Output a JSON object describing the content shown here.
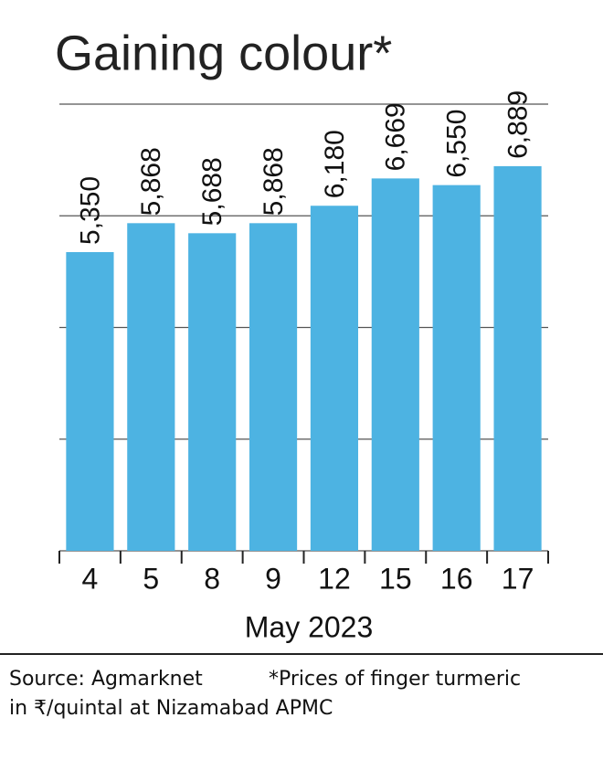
{
  "chart_data": {
    "type": "bar",
    "title": "Gaining colour*",
    "categories": [
      "4",
      "5",
      "8",
      "9",
      "12",
      "15",
      "16",
      "17"
    ],
    "values": [
      5350,
      5868,
      5688,
      5868,
      6180,
      6669,
      6550,
      6889
    ],
    "value_labels": [
      "5,350",
      "5,868",
      "5,688",
      "5,868",
      "6,180",
      "6,669",
      "6,550",
      "6,889"
    ],
    "color": "#4db3e2",
    "x_label": "May 2023",
    "ylim": [
      0,
      8000
    ],
    "yticks": [
      0,
      2000,
      4000,
      6000,
      8000
    ],
    "grid": true,
    "source": "Source: Agmarknet",
    "note": [
      "*Prices of finger turmeric",
      "in ₹/quintal at Nizamabad APMC"
    ]
  }
}
